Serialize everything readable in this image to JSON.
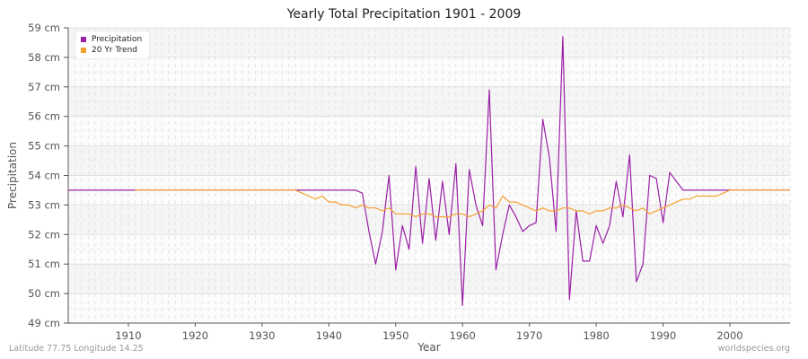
{
  "title": "Yearly Total Precipitation 1901 - 2009",
  "footer_left": "Latitude 77.75 Longitude 14.25",
  "footer_right": "worldspecies.org",
  "colors": {
    "precip": "#9b1fa6",
    "trend": "#f5a030"
  },
  "chart_data": {
    "type": "line",
    "title": "Yearly Total Precipitation 1901 - 2009",
    "xlabel": "Year",
    "ylabel": "Precipitation",
    "ylim": [
      49,
      59
    ],
    "xlim": [
      1901,
      2009
    ],
    "y_ticks": [
      "49 cm",
      "50 cm",
      "51 cm",
      "52 cm",
      "53 cm",
      "54 cm",
      "55 cm",
      "56 cm",
      "57 cm",
      "58 cm",
      "59 cm"
    ],
    "x_ticks": [
      1910,
      1920,
      1930,
      1940,
      1950,
      1960,
      1970,
      1980,
      1990,
      2000
    ],
    "legend": [
      "Precipitation",
      "20 Yr Trend"
    ],
    "legend_position": "top-left",
    "grid": true,
    "series": [
      {
        "name": "Precipitation",
        "start_year": 1901,
        "values": [
          53.5,
          53.5,
          53.5,
          53.5,
          53.5,
          53.5,
          53.5,
          53.5,
          53.5,
          53.5,
          53.5,
          53.5,
          53.5,
          53.5,
          53.5,
          53.5,
          53.5,
          53.5,
          53.5,
          53.5,
          53.5,
          53.5,
          53.5,
          53.5,
          53.5,
          53.5,
          53.5,
          53.5,
          53.5,
          53.5,
          53.5,
          53.5,
          53.5,
          53.5,
          53.5,
          53.5,
          53.5,
          53.5,
          53.5,
          53.5,
          53.5,
          53.5,
          53.5,
          53.5,
          53.4,
          52.1,
          51.0,
          52.1,
          54.0,
          50.8,
          52.3,
          51.5,
          54.3,
          51.7,
          53.9,
          51.8,
          53.8,
          52.0,
          54.4,
          49.6,
          54.2,
          53.0,
          52.3,
          56.9,
          50.8,
          52.0,
          53.0,
          52.6,
          52.1,
          52.3,
          52.4,
          55.9,
          54.6,
          52.1,
          58.7,
          49.8,
          52.8,
          51.1,
          51.1,
          52.3,
          51.7,
          52.3,
          53.8,
          52.6,
          54.7,
          50.4,
          51.0,
          54.0,
          53.9,
          52.4,
          54.1,
          53.8,
          53.5,
          53.5,
          53.5,
          53.5,
          53.5,
          53.5,
          53.5,
          53.5,
          53.5,
          53.5,
          53.5,
          53.5,
          53.5,
          53.5,
          53.5,
          53.5,
          53.5
        ]
      },
      {
        "name": "20 Yr Trend",
        "start_year": 1911,
        "values": [
          53.5,
          53.5,
          53.5,
          53.5,
          53.5,
          53.5,
          53.5,
          53.5,
          53.5,
          53.5,
          53.5,
          53.5,
          53.5,
          53.5,
          53.5,
          53.5,
          53.5,
          53.5,
          53.5,
          53.5,
          53.5,
          53.5,
          53.5,
          53.5,
          53.5,
          53.4,
          53.3,
          53.2,
          53.3,
          53.1,
          53.1,
          53.0,
          53.0,
          52.9,
          53.0,
          52.9,
          52.9,
          52.8,
          52.9,
          52.7,
          52.7,
          52.7,
          52.6,
          52.7,
          52.7,
          52.6,
          52.6,
          52.6,
          52.7,
          52.7,
          52.6,
          52.7,
          52.8,
          53.0,
          52.9,
          53.3,
          53.1,
          53.1,
          53.0,
          52.9,
          52.8,
          52.9,
          52.8,
          52.8,
          52.9,
          52.9,
          52.8,
          52.8,
          52.7,
          52.8,
          52.8,
          52.9,
          52.9,
          53.0,
          52.9,
          52.8,
          52.9,
          52.7,
          52.8,
          52.9,
          53.0,
          53.1,
          53.2,
          53.2,
          53.3,
          53.3,
          53.3,
          53.3,
          53.4,
          53.5,
          53.5,
          53.5,
          53.5,
          53.5,
          53.5,
          53.5,
          53.5,
          53.5,
          53.5
        ]
      }
    ]
  }
}
